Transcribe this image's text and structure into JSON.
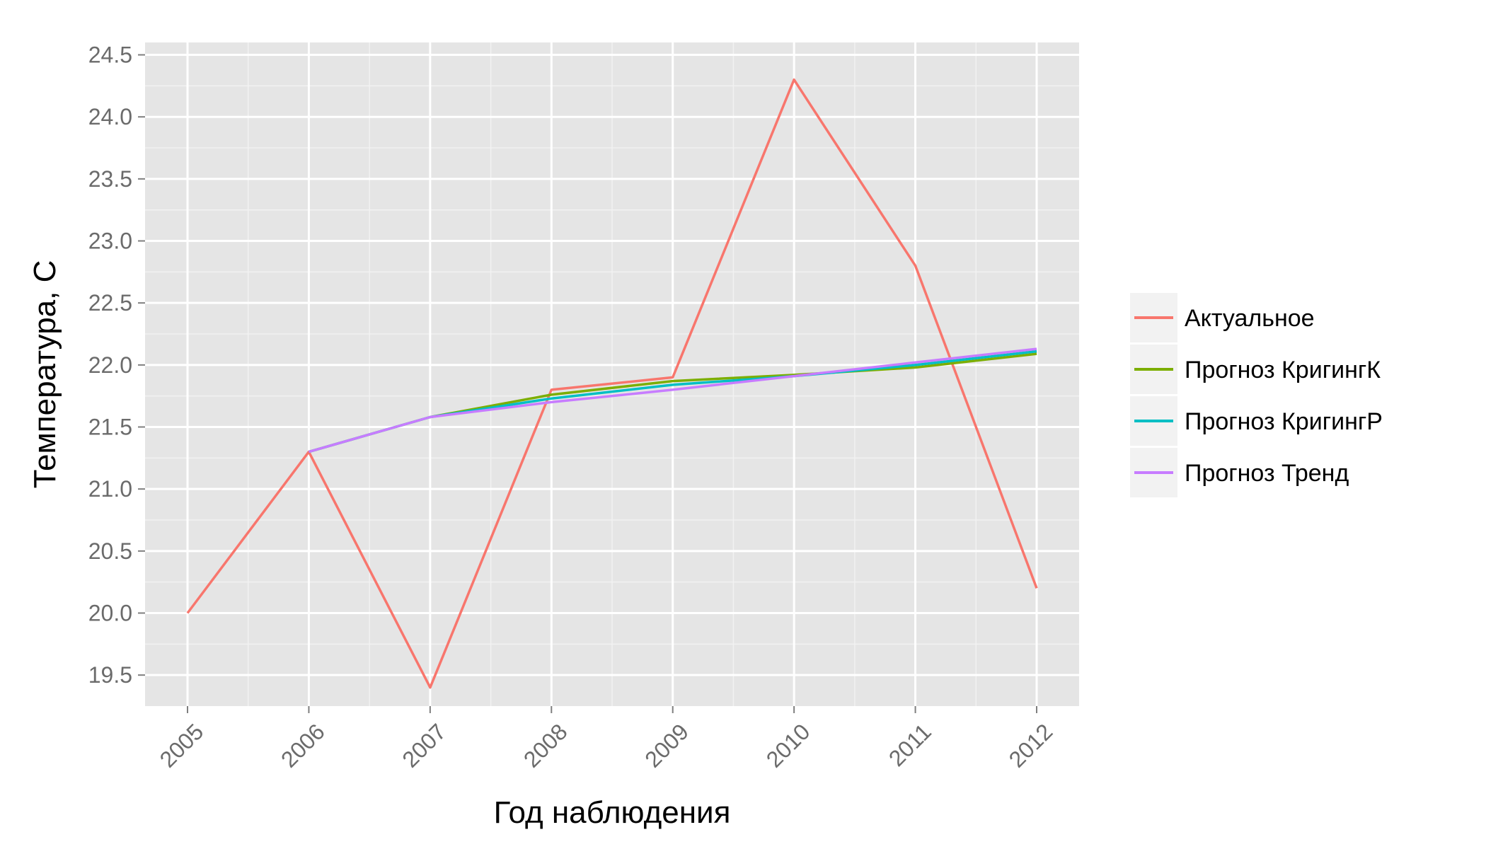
{
  "chart_data": {
    "type": "line",
    "x": [
      2005,
      2006,
      2007,
      2008,
      2009,
      2010,
      2011,
      2012
    ],
    "x_tick_labels": [
      "2005",
      "2006",
      "2007",
      "2008",
      "2009",
      "2010",
      "2011",
      "2012"
    ],
    "xlabel": "Год наблюдения",
    "ylabel": "Температура, С",
    "ylim": [
      19.25,
      24.6
    ],
    "y_ticks": [
      19.5,
      20.0,
      20.5,
      21.0,
      21.5,
      22.0,
      22.5,
      23.0,
      23.5,
      24.0,
      24.5
    ],
    "y_tick_labels": [
      "19.5",
      "20.0",
      "20.5",
      "21.0",
      "21.5",
      "22.0",
      "22.5",
      "23.0",
      "23.5",
      "24.0",
      "24.5"
    ],
    "grid": true,
    "legend_position": "right",
    "series": [
      {
        "name": "Актуальное",
        "color": "#F8766D",
        "x": [
          2005,
          2006,
          2007,
          2008,
          2009,
          2010,
          2011,
          2012
        ],
        "values": [
          20.0,
          21.3,
          19.4,
          21.8,
          21.9,
          24.3,
          22.8,
          20.2
        ]
      },
      {
        "name": "Прогноз КригингК",
        "color": "#7CAE00",
        "x": [
          2006,
          2007,
          2008,
          2009,
          2010,
          2011,
          2012
        ],
        "values": [
          21.3,
          21.58,
          21.76,
          21.87,
          21.92,
          21.98,
          22.09
        ]
      },
      {
        "name": "Прогноз КригингР",
        "color": "#00BFC4",
        "x": [
          2006,
          2007,
          2008,
          2009,
          2010,
          2011,
          2012
        ],
        "values": [
          21.3,
          21.58,
          21.73,
          21.84,
          21.91,
          22.0,
          22.11
        ]
      },
      {
        "name": "Прогноз Тренд",
        "color": "#C77CFF",
        "x": [
          2006,
          2007,
          2008,
          2009,
          2010,
          2011,
          2012
        ],
        "values": [
          21.3,
          21.58,
          21.7,
          21.8,
          21.91,
          22.02,
          22.13
        ]
      }
    ]
  }
}
